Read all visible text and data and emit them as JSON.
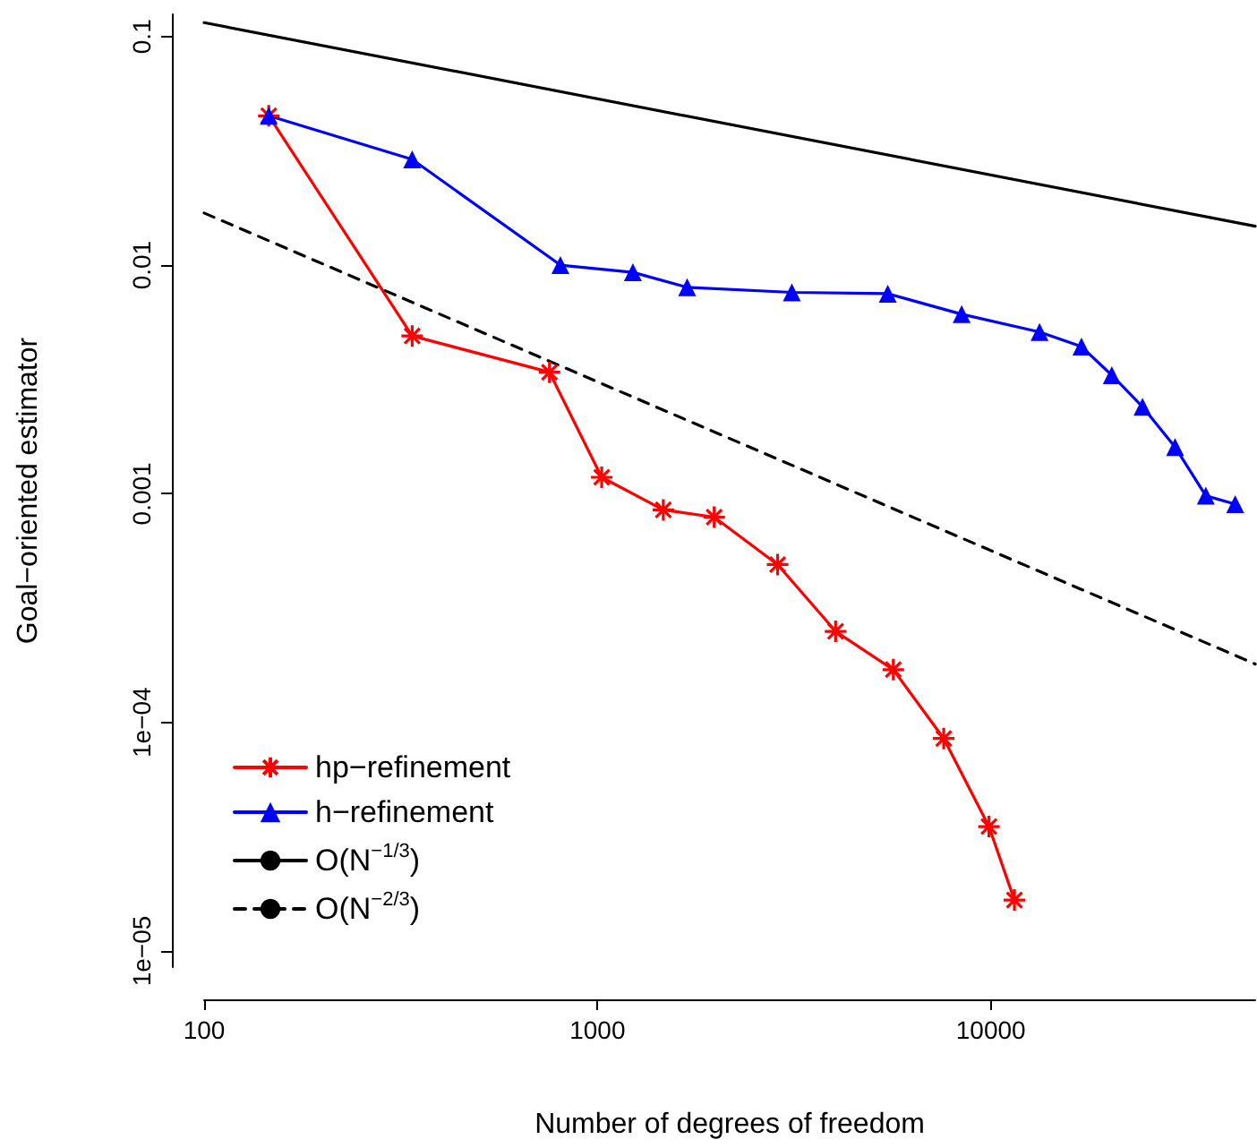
{
  "chart_data": {
    "type": "line",
    "xlabel": "Number of degrees of freedom",
    "ylabel": "Goal−oriented estimator",
    "log": "xy",
    "grid": false,
    "legend": "bottom left",
    "xlim": [
      100,
      47000
    ],
    "ylim": [
      8.5e-06,
      0.125
    ],
    "xticks": [
      100,
      1000,
      10000
    ],
    "yticks": [
      0.1,
      0.01,
      0.001,
      {
        "value": 0.0001,
        "label": "1e−04"
      },
      {
        "value": 1e-05,
        "label": "1e−05"
      }
    ],
    "series": [
      {
        "name": "hp−refinement",
        "color": "#ff0000",
        "marker": "cross",
        "line_style": "solid",
        "x": [
          146,
          338,
          755,
          1025,
          1470,
          1980,
          2870,
          4030,
          5650,
          7590,
          9890,
          11480
        ],
        "values": [
          0.045,
          0.0049,
          0.0034,
          0.00118,
          0.00085,
          0.00079,
          0.00049,
          0.00025,
          0.00017,
          8.5e-05,
          3.5e-05,
          1.67e-05
        ]
      },
      {
        "name": "h−refinement",
        "color": "#0000ff",
        "marker": "triangle",
        "line_style": "solid",
        "x": [
          146,
          338,
          805,
          1230,
          1690,
          3120,
          5470,
          8430,
          13300,
          17000,
          20300,
          24300,
          29400,
          35200,
          41800
        ],
        "values": [
          0.045,
          0.029,
          0.01,
          0.0093,
          0.008,
          0.0076,
          0.0075,
          0.0061,
          0.0051,
          0.0044,
          0.0033,
          0.0024,
          0.0016,
          0.00098,
          0.0009
        ]
      },
      {
        "name": "O(N$^{−1/3}$)",
        "color": "#000000",
        "marker": "none",
        "line_style": "solid",
        "x": [
          100,
          47000
        ],
        "values": [
          0.115,
          0.0148
        ]
      },
      {
        "name": "O(N$^{−2/3}$)",
        "color": "#000000",
        "marker": "none",
        "line_style": "dashed",
        "x": [
          100,
          47000
        ],
        "values": [
          0.0169,
          0.00018
        ]
      }
    ]
  }
}
